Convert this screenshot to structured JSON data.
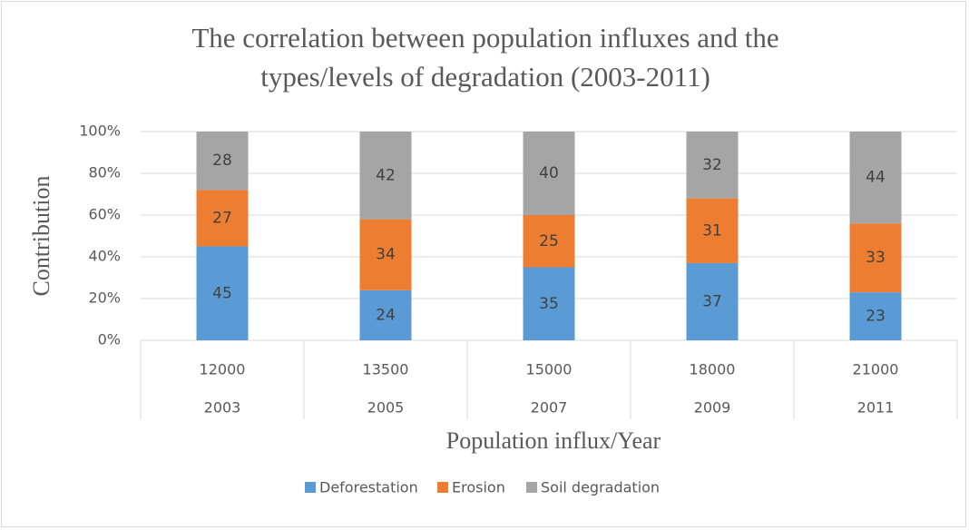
{
  "chart_data": {
    "type": "stacked_bar",
    "title": [
      "The correlation between population influxes and the",
      "types/levels of degradation (2003-2011)"
    ],
    "categories": [
      "12000",
      "13500",
      "15000",
      "18000",
      "21000"
    ],
    "years": [
      "2003",
      "2005",
      "2007",
      "2009",
      "2011"
    ],
    "series": [
      {
        "name": "Deforestation",
        "color": "#5b9bd5",
        "values": [
          45,
          24,
          35,
          37,
          23
        ]
      },
      {
        "name": "Erosion",
        "color": "#ed7d31",
        "values": [
          27,
          34,
          25,
          31,
          33
        ]
      },
      {
        "name": "Soil degradation",
        "color": "#a5a5a5",
        "values": [
          28,
          42,
          40,
          32,
          44
        ]
      }
    ],
    "ylim": [
      0,
      100
    ],
    "yticks": [
      {
        "value": 0,
        "label": "0%"
      },
      {
        "value": 20,
        "label": "20%"
      },
      {
        "value": 40,
        "label": "40%"
      },
      {
        "value": 60,
        "label": "60%"
      },
      {
        "value": 80,
        "label": "80%"
      },
      {
        "value": 100,
        "label": "100%"
      }
    ],
    "xlabel": "Population influx/Year",
    "ylabel": "Contribution",
    "grid": true,
    "legend": "bottom"
  }
}
